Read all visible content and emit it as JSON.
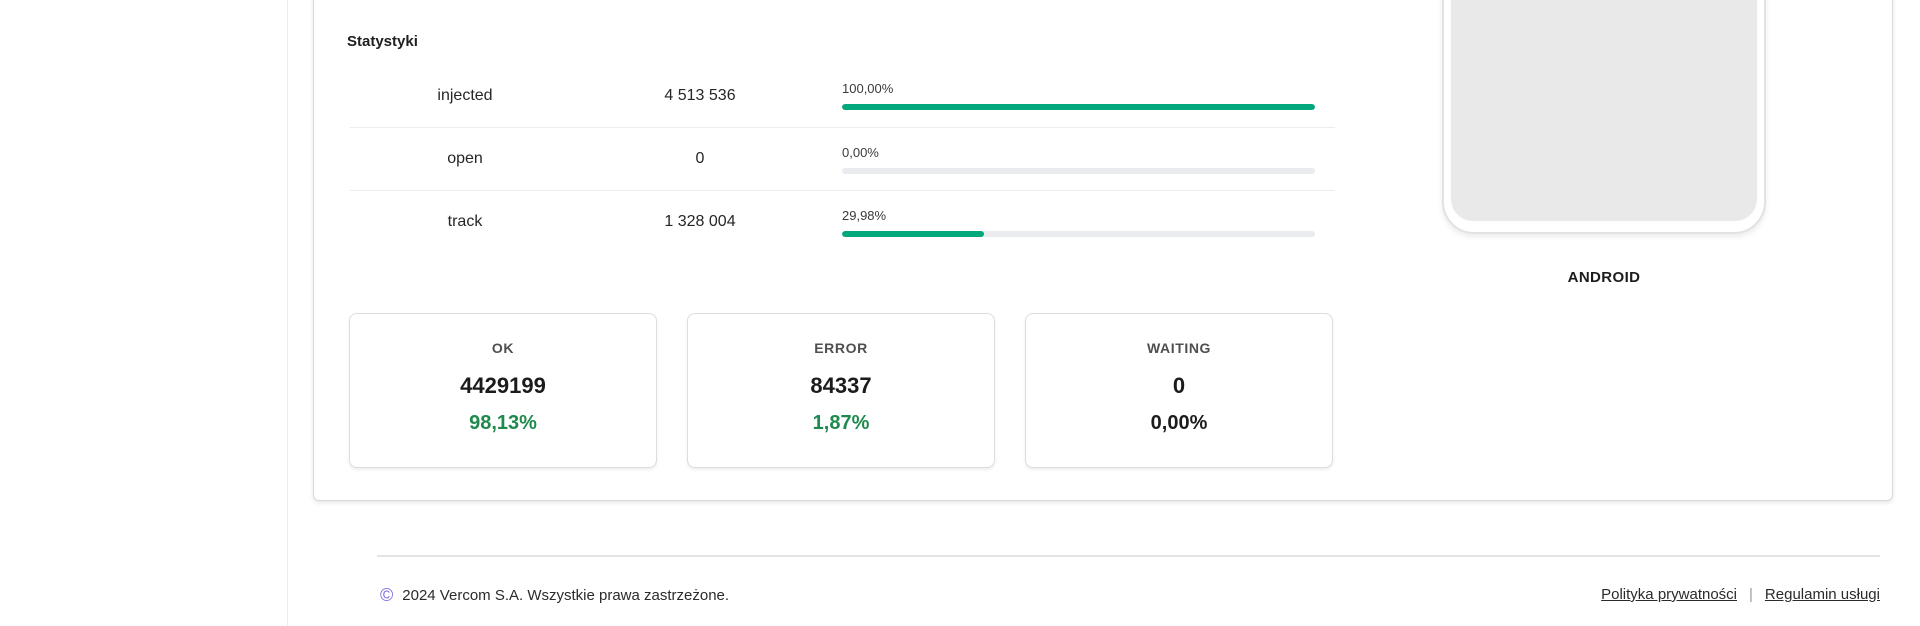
{
  "panel": {
    "heading": "Statystyki",
    "stats": {
      "rows": [
        {
          "label": "injected",
          "value": "4 513 536",
          "percent": "100,00%",
          "pct": 100
        },
        {
          "label": "open",
          "value": "0",
          "percent": "0,00%",
          "pct": 0
        },
        {
          "label": "track",
          "value": "1 328 004",
          "percent": "29,98%",
          "pct": 29.98
        }
      ]
    },
    "cards": [
      {
        "title": "OK",
        "value": "4429199",
        "percent": "98,13%",
        "percent_color": "#1e8a4d"
      },
      {
        "title": "ERROR",
        "value": "84337",
        "percent": "1,87%",
        "percent_color": "#1e8a4d"
      },
      {
        "title": "WAITING",
        "value": "0",
        "percent": "0,00%",
        "percent_color": "#1c1c1c"
      }
    ],
    "device": {
      "label": "ANDROID"
    }
  },
  "footer": {
    "copyright_symbol": "©",
    "copyright_text": "2024 Vercom S.A. Wszystkie prawa zastrzeżone.",
    "separator": "|",
    "links": [
      {
        "label": "Polityka prywatności"
      },
      {
        "label": "Regulamin usługi"
      }
    ]
  },
  "colors": {
    "bar_fill": "#00a87c",
    "bar_track": "#e9ebee",
    "green_text": "#1e8a4d",
    "copyright_accent": "#7d6ee0"
  }
}
